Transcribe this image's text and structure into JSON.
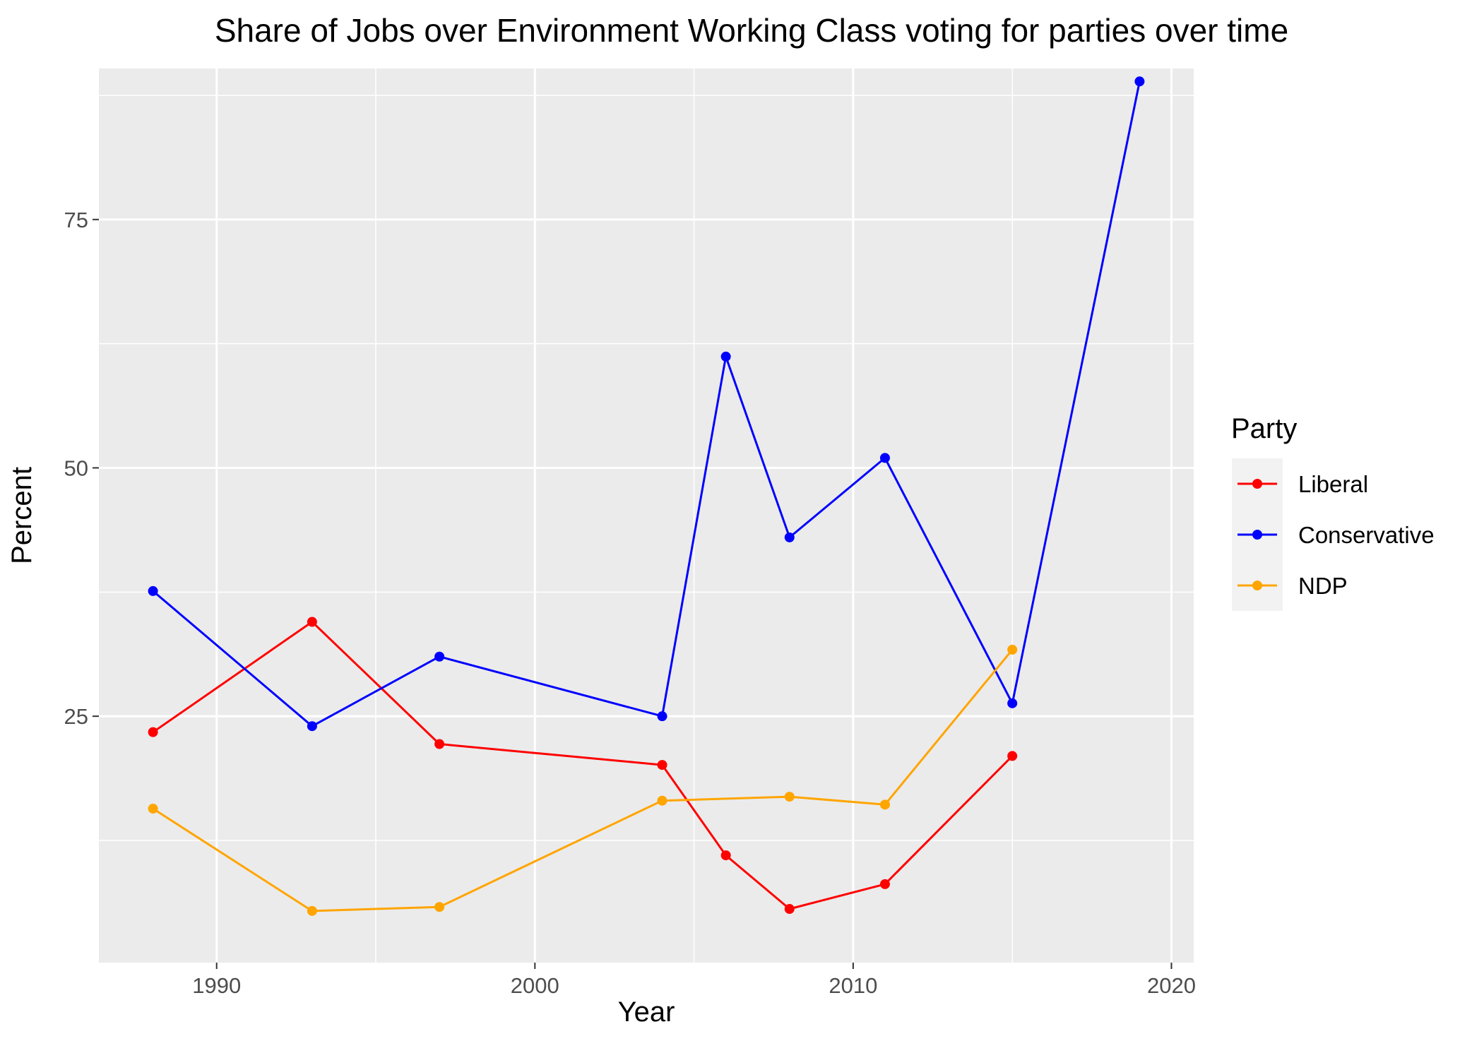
{
  "chart_data": {
    "type": "line",
    "title": "Share of Jobs over Environment Working Class voting for parties over time",
    "xlabel": "Year",
    "ylabel": "Percent",
    "xlim": [
      1986.3,
      2020.7
    ],
    "ylim": [
      0.2,
      90.2
    ],
    "x_ticks": [
      1990,
      2000,
      2010,
      2020
    ],
    "y_ticks": [
      25,
      50,
      75
    ],
    "grid": true,
    "panel_background": "#ebebeb",
    "legend": {
      "title": "Party",
      "position": "right"
    },
    "series": [
      {
        "name": "Liberal",
        "color": "#ff0000",
        "x": [
          1988,
          1993,
          1997,
          2004,
          2006,
          2008,
          2011,
          2015
        ],
        "y": [
          23.4,
          34.5,
          22.2,
          20.1,
          11.0,
          5.6,
          8.1,
          21.0
        ]
      },
      {
        "name": "Conservative",
        "color": "#0000ff",
        "x": [
          1988,
          1993,
          1997,
          2004,
          2006,
          2008,
          2011,
          2015,
          2019
        ],
        "y": [
          37.6,
          24.0,
          31.0,
          25.0,
          61.2,
          43.0,
          51.0,
          26.3,
          88.9
        ]
      },
      {
        "name": "NDP",
        "color": "#ffa500",
        "x": [
          1988,
          1993,
          1997,
          2004,
          2006,
          2008,
          2011,
          2015
        ],
        "y": [
          15.7,
          5.4,
          5.8,
          16.5,
          null,
          16.9,
          16.1,
          31.7
        ]
      }
    ]
  }
}
